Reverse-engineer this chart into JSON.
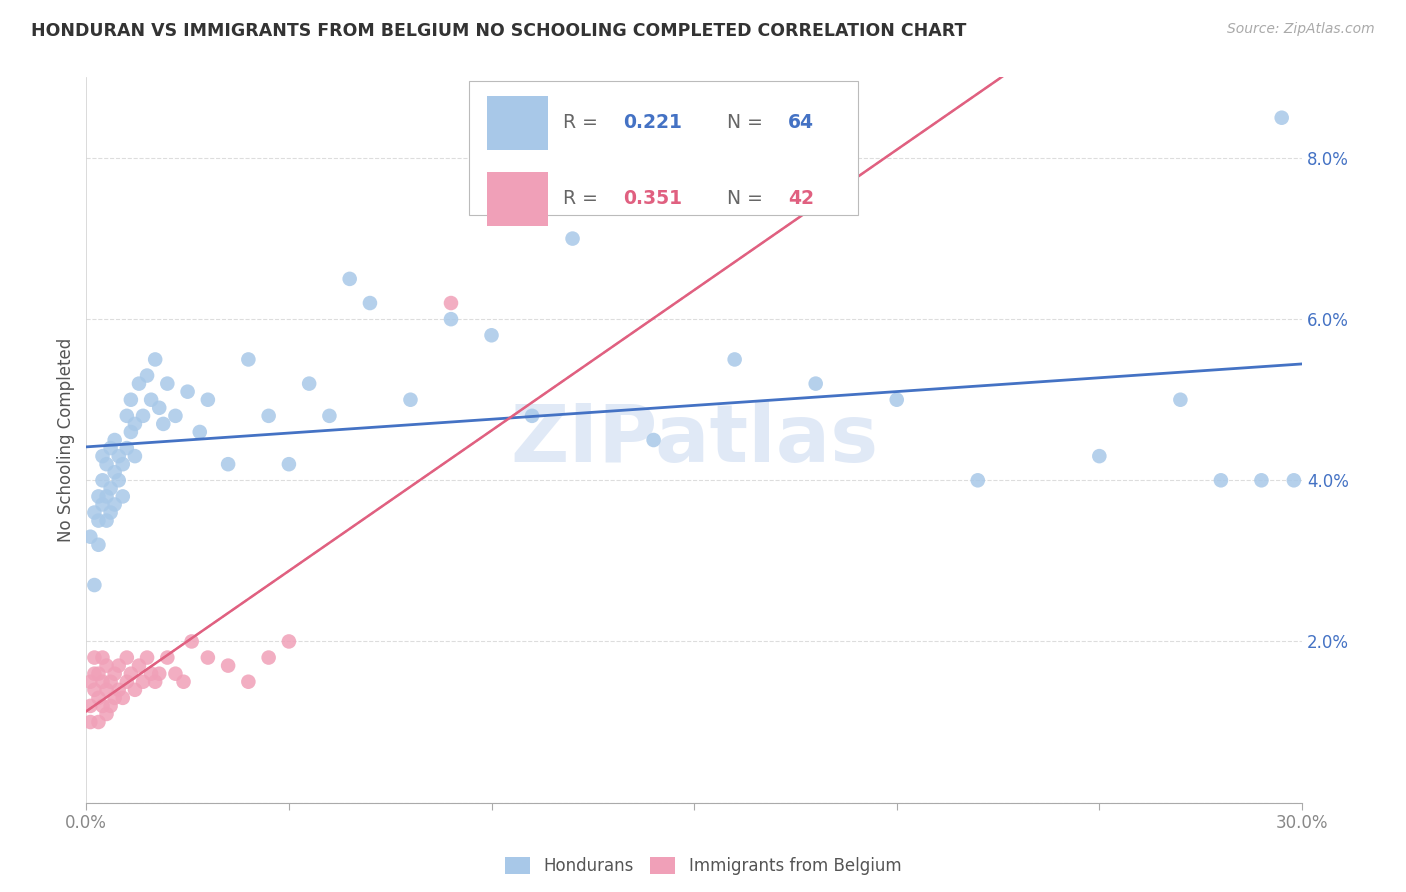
{
  "title": "HONDURAN VS IMMIGRANTS FROM BELGIUM NO SCHOOLING COMPLETED CORRELATION CHART",
  "source": "Source: ZipAtlas.com",
  "ylabel": "No Schooling Completed",
  "x_min": 0.0,
  "x_max": 0.3,
  "y_min": 0.0,
  "y_max": 0.09,
  "x_ticks": [
    0.0,
    0.05,
    0.1,
    0.15,
    0.2,
    0.25,
    0.3
  ],
  "x_tick_labels": [
    "0.0%",
    "",
    "",
    "",
    "",
    "",
    "30.0%"
  ],
  "y_ticks": [
    0.0,
    0.02,
    0.04,
    0.06,
    0.08
  ],
  "y_tick_labels": [
    "",
    "2.0%",
    "4.0%",
    "6.0%",
    "8.0%"
  ],
  "blue_color": "#A8C8E8",
  "pink_color": "#F0A0B8",
  "blue_line_color": "#4472C4",
  "pink_line_color": "#E06080",
  "watermark": "ZIPatlas",
  "watermark_color": "#C8D8F0",
  "hondurans_x": [
    0.001,
    0.002,
    0.002,
    0.003,
    0.003,
    0.003,
    0.004,
    0.004,
    0.004,
    0.005,
    0.005,
    0.005,
    0.006,
    0.006,
    0.006,
    0.007,
    0.007,
    0.007,
    0.008,
    0.008,
    0.009,
    0.009,
    0.01,
    0.01,
    0.011,
    0.011,
    0.012,
    0.012,
    0.013,
    0.014,
    0.015,
    0.016,
    0.017,
    0.018,
    0.019,
    0.02,
    0.022,
    0.025,
    0.028,
    0.03,
    0.035,
    0.04,
    0.045,
    0.05,
    0.055,
    0.06,
    0.065,
    0.07,
    0.08,
    0.09,
    0.1,
    0.11,
    0.12,
    0.14,
    0.16,
    0.18,
    0.2,
    0.22,
    0.25,
    0.27,
    0.28,
    0.29,
    0.295,
    0.298
  ],
  "hondurans_y": [
    0.033,
    0.036,
    0.027,
    0.038,
    0.035,
    0.032,
    0.04,
    0.037,
    0.043,
    0.035,
    0.038,
    0.042,
    0.036,
    0.039,
    0.044,
    0.037,
    0.041,
    0.045,
    0.04,
    0.043,
    0.038,
    0.042,
    0.044,
    0.048,
    0.046,
    0.05,
    0.043,
    0.047,
    0.052,
    0.048,
    0.053,
    0.05,
    0.055,
    0.049,
    0.047,
    0.052,
    0.048,
    0.051,
    0.046,
    0.05,
    0.042,
    0.055,
    0.048,
    0.042,
    0.052,
    0.048,
    0.065,
    0.062,
    0.05,
    0.06,
    0.058,
    0.048,
    0.07,
    0.045,
    0.055,
    0.052,
    0.05,
    0.04,
    0.043,
    0.05,
    0.04,
    0.04,
    0.085,
    0.04
  ],
  "belgium_x": [
    0.001,
    0.001,
    0.001,
    0.002,
    0.002,
    0.002,
    0.003,
    0.003,
    0.003,
    0.004,
    0.004,
    0.004,
    0.005,
    0.005,
    0.005,
    0.006,
    0.006,
    0.007,
    0.007,
    0.008,
    0.008,
    0.009,
    0.01,
    0.01,
    0.011,
    0.012,
    0.013,
    0.014,
    0.015,
    0.016,
    0.017,
    0.018,
    0.02,
    0.022,
    0.024,
    0.026,
    0.03,
    0.035,
    0.04,
    0.045,
    0.05,
    0.09
  ],
  "belgium_y": [
    0.012,
    0.015,
    0.01,
    0.014,
    0.016,
    0.018,
    0.01,
    0.013,
    0.016,
    0.012,
    0.015,
    0.018,
    0.011,
    0.014,
    0.017,
    0.012,
    0.015,
    0.013,
    0.016,
    0.014,
    0.017,
    0.013,
    0.015,
    0.018,
    0.016,
    0.014,
    0.017,
    0.015,
    0.018,
    0.016,
    0.015,
    0.016,
    0.018,
    0.016,
    0.015,
    0.02,
    0.018,
    0.017,
    0.015,
    0.018,
    0.02,
    0.062
  ]
}
